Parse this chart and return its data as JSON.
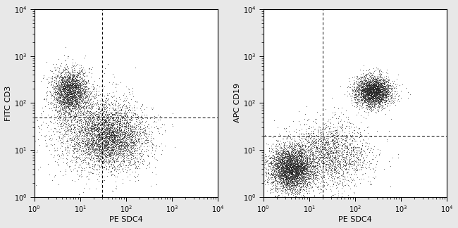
{
  "plot1": {
    "ylabel": "FITC CD3",
    "xlabel": "PE SDC4",
    "xmin": 1,
    "xmax": 10000,
    "ymin": 1,
    "ymax": 10000,
    "hline": 50,
    "vline": 30
  },
  "plot2": {
    "ylabel": "APC CD19",
    "xlabel": "PE SDC4",
    "xmin": 1,
    "xmax": 10000,
    "ymin": 1,
    "ymax": 10000,
    "hline": 20,
    "vline": 20
  },
  "fig_bg": "#e8e8e8",
  "ax_bg": "#ffffff",
  "scatter_color": "#222222",
  "dot_size": 0.5,
  "dot_alpha": 0.55
}
